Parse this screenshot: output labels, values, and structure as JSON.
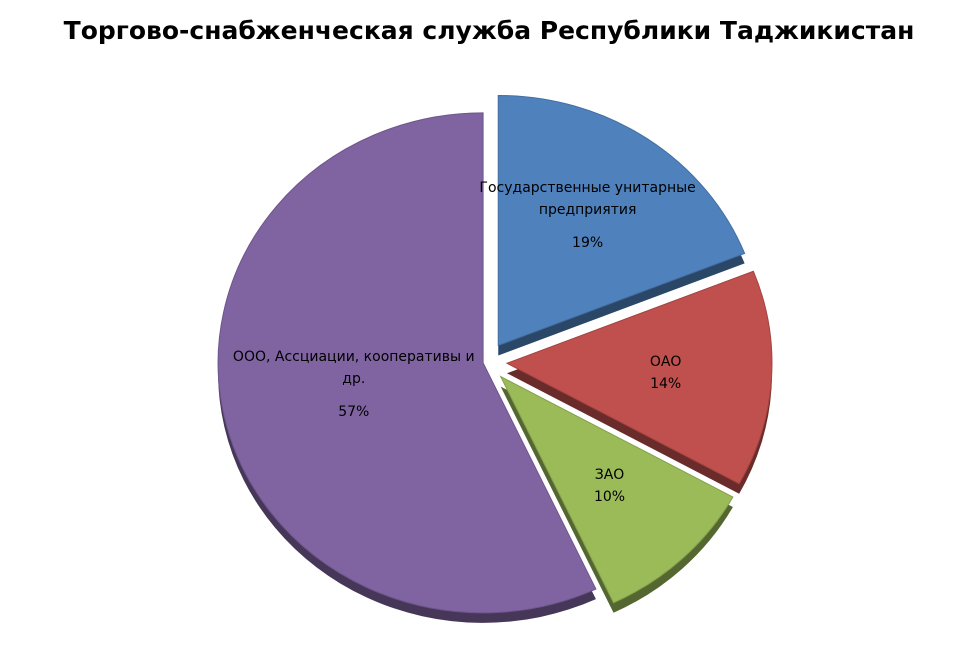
{
  "chart_data": {
    "type": "pie",
    "title": "Торгово-снабженческая служба Республики Таджикистан",
    "categories": [
      "Государственные унитарные предприятия",
      "ОАО",
      "ЗАО",
      "ООО, Ассциации, кооперативы и др."
    ],
    "values": [
      19,
      14,
      10,
      57
    ],
    "value_labels": [
      "19%",
      "14%",
      "10%",
      "57%"
    ],
    "colors": [
      "#4f81bd",
      "#c0504d",
      "#9bbb59",
      "#8064a2"
    ]
  }
}
